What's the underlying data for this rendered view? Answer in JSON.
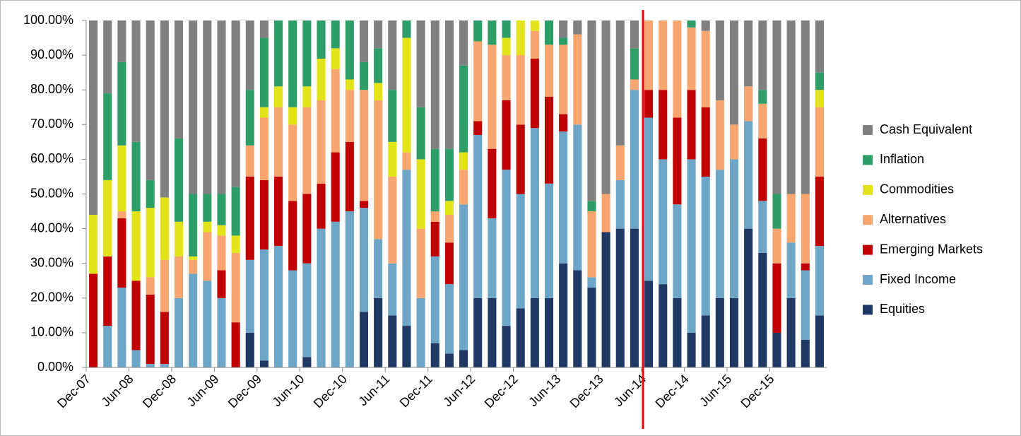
{
  "chart_data": {
    "type": "stacked_bar",
    "categories": [
      "Dec-07",
      null,
      null,
      "Jun-08",
      null,
      null,
      "Dec-08",
      null,
      null,
      "Jun-09",
      null,
      null,
      "Dec-09",
      null,
      null,
      "Jun-10",
      null,
      null,
      "Dec-10",
      null,
      null,
      "Jun-11",
      null,
      null,
      "Dec-11",
      null,
      null,
      "Jun-12",
      null,
      null,
      "Dec-12",
      null,
      null,
      "Jun-13",
      null,
      null,
      "Dec-13",
      null,
      null,
      "Jun-14",
      null,
      null,
      "Dec-14",
      null,
      null,
      "Jun-15",
      null,
      null,
      "Dec-15",
      null,
      null,
      null
    ],
    "series": [
      {
        "name": "Equities",
        "color": "#1f3864",
        "values": [
          0,
          0,
          0,
          0,
          0,
          0,
          0,
          0,
          0,
          0,
          0,
          10,
          2,
          0,
          0,
          3,
          0,
          0,
          0,
          16,
          20,
          15,
          12,
          0,
          7,
          4,
          5,
          20,
          20,
          12,
          17,
          20,
          20,
          30,
          28,
          23,
          39,
          40,
          40,
          25,
          24,
          20,
          10,
          15,
          20,
          20,
          40,
          33,
          10,
          20,
          8,
          15
        ]
      },
      {
        "name": "Fixed Income",
        "color": "#6ea6c8",
        "values": [
          0,
          12,
          23,
          5,
          1,
          1,
          20,
          27,
          25,
          20,
          0,
          21,
          32,
          35,
          28,
          27,
          40,
          42,
          45,
          30,
          17,
          15,
          45,
          20,
          25,
          20,
          42,
          47,
          23,
          45,
          33,
          49,
          33,
          38,
          42,
          3,
          0,
          14,
          40,
          47,
          36,
          27,
          50,
          40,
          37,
          40,
          31,
          15,
          0,
          16,
          20,
          20
        ]
      },
      {
        "name": "Emerging Markets",
        "color": "#c00000",
        "values": [
          27,
          20,
          20,
          20,
          20,
          15,
          0,
          0,
          0,
          8,
          13,
          24,
          20,
          20,
          20,
          20,
          13,
          20,
          20,
          2,
          0,
          0,
          0,
          0,
          10,
          12,
          0,
          4,
          20,
          20,
          20,
          20,
          25,
          5,
          0,
          0,
          0,
          0,
          0,
          8,
          20,
          25,
          20,
          20,
          0,
          0,
          0,
          18,
          20,
          0,
          2,
          20
        ]
      },
      {
        "name": "Alternatives",
        "color": "#f9a56f",
        "values": [
          0,
          0,
          2,
          0,
          5,
          15,
          12,
          4,
          14,
          10,
          20,
          9,
          18,
          20,
          22,
          25,
          24,
          24,
          15,
          32,
          40,
          25,
          5,
          20,
          3,
          8,
          10,
          23,
          30,
          13,
          20,
          8,
          15,
          20,
          26,
          19,
          11,
          10,
          3,
          20,
          20,
          28,
          18,
          22,
          20,
          10,
          10,
          10,
          10,
          14,
          20,
          20
        ]
      },
      {
        "name": "Commodities",
        "color": "#e3e31a",
        "values": [
          17,
          22,
          19,
          20,
          20,
          18,
          10,
          1,
          3,
          3,
          5,
          0,
          3,
          6,
          5,
          6,
          12,
          6,
          3,
          0,
          5,
          10,
          33,
          20,
          0,
          4,
          5,
          0,
          0,
          5,
          10,
          3,
          0,
          0,
          0,
          0,
          0,
          0,
          0,
          0,
          0,
          0,
          0,
          0,
          0,
          0,
          0,
          0,
          0,
          0,
          0,
          5
        ]
      },
      {
        "name": "Inflation",
        "color": "#2e9e68",
        "values": [
          0,
          25,
          24,
          20,
          8,
          0,
          24,
          18,
          8,
          9,
          14,
          16,
          20,
          19,
          25,
          19,
          11,
          8,
          17,
          8,
          10,
          15,
          5,
          15,
          18,
          15,
          25,
          6,
          7,
          5,
          0,
          0,
          7,
          2,
          0,
          3,
          0,
          0,
          9,
          0,
          0,
          0,
          2,
          0,
          0,
          0,
          0,
          4,
          10,
          0,
          0,
          5
        ]
      },
      {
        "name": "Cash Equivalent",
        "color": "#808080",
        "values": [
          56,
          21,
          12,
          35,
          46,
          51,
          34,
          50,
          50,
          50,
          48,
          20,
          5,
          0,
          0,
          0,
          0,
          0,
          0,
          12,
          8,
          20,
          0,
          25,
          37,
          37,
          13,
          0,
          0,
          0,
          0,
          0,
          0,
          5,
          4,
          52,
          50,
          36,
          8,
          0,
          0,
          0,
          0,
          3,
          23,
          30,
          19,
          20,
          50,
          50,
          50,
          15
        ]
      }
    ],
    "ylim": [
      0,
      100
    ],
    "yticks": [
      {
        "value": 0,
        "label": "0.00%"
      },
      {
        "value": 10,
        "label": "10.00%"
      },
      {
        "value": 20,
        "label": "20.00%"
      },
      {
        "value": 30,
        "label": "30.00%"
      },
      {
        "value": 40,
        "label": "40.00%"
      },
      {
        "value": 50,
        "label": "50.00%"
      },
      {
        "value": 60,
        "label": "60.00%"
      },
      {
        "value": 70,
        "label": "70.00%"
      },
      {
        "value": 80,
        "label": "80.00%"
      },
      {
        "value": 90,
        "label": "90.00%"
      },
      {
        "value": 100,
        "label": "100.00%"
      }
    ],
    "legend": "right"
  }
}
